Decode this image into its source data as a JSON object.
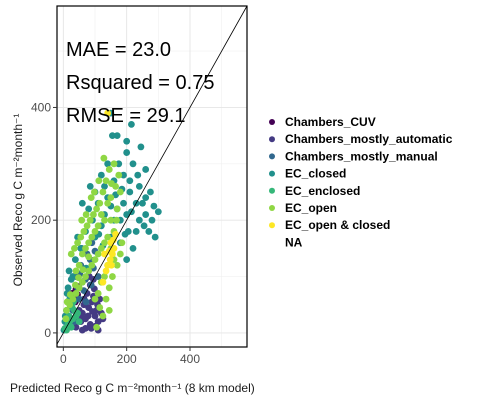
{
  "chart_data": {
    "type": "scatter",
    "title": "",
    "xlabel": "Predicted Reco g C m⁻²month⁻¹ (8 km model)",
    "ylabel": "Observed Reco g C m⁻²month⁻¹",
    "xlim": [
      -20,
      580
    ],
    "ylim": [
      -25,
      580
    ],
    "x_ticks": [
      0,
      200,
      400
    ],
    "y_ticks": [
      0,
      200,
      400
    ],
    "grid": true,
    "legend_position": "right",
    "reference_line": "1:1",
    "annotations": [
      "MAE = 23.0",
      "Rsquared = 0.75",
      "RMSE = 29.1"
    ],
    "series": [
      {
        "name": "Chambers_CUV",
        "color": "#440154",
        "points": [
          [
            28,
            70
          ],
          [
            30,
            65
          ],
          [
            36,
            72
          ],
          [
            25,
            58
          ],
          [
            40,
            78
          ],
          [
            34,
            62
          ],
          [
            45,
            68
          ],
          [
            22,
            48
          ],
          [
            38,
            55
          ],
          [
            48,
            82
          ]
        ]
      },
      {
        "name": "Chambers_mostly_automatic",
        "color": "#443A83",
        "points": [
          [
            40,
            10
          ],
          [
            55,
            20
          ],
          [
            60,
            35
          ],
          [
            70,
            25
          ],
          [
            80,
            45
          ],
          [
            85,
            15
          ],
          [
            90,
            55
          ],
          [
            100,
            30
          ],
          [
            105,
            40
          ],
          [
            110,
            20
          ],
          [
            95,
            65
          ],
          [
            75,
            70
          ],
          [
            65,
            50
          ],
          [
            50,
            40
          ],
          [
            120,
            35
          ],
          [
            115,
            60
          ],
          [
            85,
            85
          ],
          [
            95,
            95
          ],
          [
            60,
            5
          ],
          [
            70,
            8
          ],
          [
            88,
            8
          ],
          [
            102,
            12
          ],
          [
            78,
            30
          ],
          [
            92,
            38
          ],
          [
            108,
            50
          ],
          [
            125,
            25
          ],
          [
            58,
            28
          ],
          [
            66,
            60
          ],
          [
            82,
            100
          ],
          [
            98,
            78
          ],
          [
            110,
            5
          ],
          [
            45,
            25
          ]
        ]
      },
      {
        "name": "Chambers_mostly_manual",
        "color": "#31688E",
        "points": [
          [
            40,
            100
          ],
          [
            55,
            120
          ],
          [
            60,
            90
          ],
          [
            75,
            140
          ],
          [
            80,
            110
          ],
          [
            65,
            75
          ],
          [
            85,
            130
          ],
          [
            95,
            115
          ],
          [
            50,
            60
          ],
          [
            70,
            95
          ],
          [
            45,
            80
          ],
          [
            100,
            145
          ],
          [
            90,
            160
          ],
          [
            30,
            40
          ],
          [
            35,
            20
          ],
          [
            58,
            150
          ],
          [
            88,
            85
          ],
          [
            72,
            55
          ],
          [
            110,
            100
          ],
          [
            52,
            105
          ]
        ]
      },
      {
        "name": "EC_closed",
        "color": "#21908C",
        "points": [
          [
            150,
            390
          ],
          [
            170,
            350
          ],
          [
            200,
            320
          ],
          [
            220,
            300
          ],
          [
            240,
            260
          ],
          [
            250,
            230
          ],
          [
            260,
            210
          ],
          [
            230,
            180
          ],
          [
            210,
            250
          ],
          [
            190,
            280
          ],
          [
            270,
            180
          ],
          [
            280,
            200
          ],
          [
            200,
            340
          ],
          [
            175,
            300
          ],
          [
            160,
            270
          ],
          [
            140,
            240
          ],
          [
            130,
            210
          ],
          [
            120,
            190
          ],
          [
            100,
            170
          ],
          [
            110,
            230
          ],
          [
            260,
            240
          ],
          [
            290,
            170
          ],
          [
            240,
            200
          ],
          [
            220,
            150
          ],
          [
            200,
            130
          ],
          [
            180,
            160
          ],
          [
            150,
            170
          ],
          [
            170,
            220
          ],
          [
            245,
            330
          ],
          [
            210,
            270
          ],
          [
            190,
            230
          ],
          [
            160,
            200
          ],
          [
            130,
            260
          ],
          [
            100,
            250
          ],
          [
            80,
            220
          ],
          [
            70,
            180
          ],
          [
            55,
            150
          ],
          [
            30,
            100
          ],
          [
            25,
            95
          ],
          [
            15,
            80
          ],
          [
            20,
            60
          ],
          [
            10,
            40
          ],
          [
            5,
            20
          ],
          [
            2,
            5
          ],
          [
            120,
            280
          ],
          [
            140,
            300
          ],
          [
            180,
            200
          ],
          [
            230,
            230
          ],
          [
            200,
            210
          ],
          [
            275,
            250
          ],
          [
            255,
            190
          ],
          [
            195,
            175
          ],
          [
            165,
            245
          ],
          [
            125,
            155
          ],
          [
            150,
            225
          ],
          [
            85,
            260
          ],
          [
            60,
            230
          ],
          [
            45,
            170
          ],
          [
            300,
            215
          ],
          [
            260,
            290
          ],
          [
            215,
            215
          ],
          [
            185,
            255
          ],
          [
            155,
            350
          ],
          [
            215,
            370
          ],
          [
            235,
            280
          ],
          [
            205,
            180
          ],
          [
            112,
            175
          ],
          [
            92,
            200
          ],
          [
            72,
            115
          ],
          [
            38,
            130
          ],
          [
            18,
            110
          ],
          [
            12,
            70
          ],
          [
            6,
            30
          ],
          [
            286,
            225
          ]
        ]
      },
      {
        "name": "EC_enclosed",
        "color": "#35B779",
        "points": [
          [
            20,
            20
          ],
          [
            30,
            25
          ],
          [
            35,
            40
          ],
          [
            25,
            10
          ],
          [
            15,
            15
          ],
          [
            40,
            30
          ],
          [
            45,
            35
          ],
          [
            50,
            20
          ],
          [
            10,
            5
          ],
          [
            5,
            8
          ],
          [
            28,
            45
          ],
          [
            32,
            55
          ],
          [
            18,
            30
          ]
        ]
      },
      {
        "name": "EC_open",
        "color": "#8FD744",
        "points": [
          [
            160,
            300
          ],
          [
            175,
            280
          ],
          [
            165,
            260
          ],
          [
            180,
            250
          ],
          [
            150,
            240
          ],
          [
            140,
            230
          ],
          [
            120,
            210
          ],
          [
            130,
            200
          ],
          [
            110,
            190
          ],
          [
            100,
            180
          ],
          [
            90,
            170
          ],
          [
            80,
            160
          ],
          [
            70,
            150
          ],
          [
            60,
            140
          ],
          [
            50,
            120
          ],
          [
            40,
            110
          ],
          [
            170,
            220
          ],
          [
            150,
            200
          ],
          [
            160,
            180
          ],
          [
            140,
            170
          ],
          [
            130,
            160
          ],
          [
            120,
            150
          ],
          [
            110,
            140
          ],
          [
            100,
            130
          ],
          [
            90,
            120
          ],
          [
            80,
            110
          ],
          [
            70,
            100
          ],
          [
            60,
            90
          ],
          [
            50,
            80
          ],
          [
            40,
            70
          ],
          [
            30,
            60
          ],
          [
            20,
            50
          ],
          [
            10,
            40
          ],
          [
            145,
            290
          ],
          [
            135,
            270
          ],
          [
            125,
            250
          ],
          [
            115,
            230
          ],
          [
            105,
            220
          ],
          [
            95,
            210
          ],
          [
            85,
            200
          ],
          [
            75,
            190
          ],
          [
            65,
            180
          ],
          [
            55,
            170
          ],
          [
            45,
            160
          ],
          [
            35,
            150
          ],
          [
            25,
            140
          ],
          [
            150,
            150
          ],
          [
            160,
            130
          ],
          [
            170,
            120
          ],
          [
            155,
            100
          ],
          [
            145,
            80
          ],
          [
            135,
            60
          ],
          [
            140,
            120
          ],
          [
            130,
            100
          ],
          [
            120,
            90
          ],
          [
            110,
            70
          ],
          [
            100,
            60
          ],
          [
            115,
            45
          ],
          [
            125,
            30
          ],
          [
            105,
            10
          ],
          [
            145,
            40
          ],
          [
            180,
            140
          ],
          [
            185,
            160
          ],
          [
            128,
            310
          ],
          [
            112,
            270
          ],
          [
            98,
            250
          ],
          [
            88,
            240
          ],
          [
            72,
            210
          ],
          [
            58,
            200
          ],
          [
            152,
            265
          ],
          [
            168,
            200
          ],
          [
            80,
            135
          ],
          [
            62,
            112
          ],
          [
            48,
            98
          ],
          [
            38,
            85
          ],
          [
            22,
            68
          ],
          [
            12,
            55
          ],
          [
            8,
            25
          ]
        ]
      },
      {
        "name": "EC_open & closed",
        "color": "#FDE725",
        "points": [
          [
            150,
            160
          ],
          [
            155,
            140
          ],
          [
            160,
            150
          ],
          [
            148,
            130
          ],
          [
            140,
            120
          ],
          [
            135,
            110
          ],
          [
            145,
            145
          ],
          [
            158,
            165
          ],
          [
            125,
            90
          ],
          [
            165,
            175
          ],
          [
            140,
            390
          ],
          [
            130,
            140
          ],
          [
            152,
            120
          ]
        ]
      },
      {
        "name": "NA",
        "color": "#808080",
        "points": []
      }
    ]
  }
}
